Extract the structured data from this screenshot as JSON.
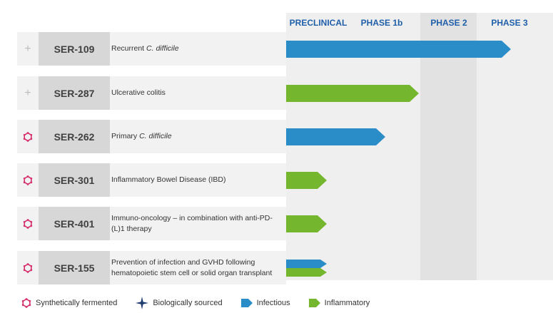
{
  "phases": [
    "PRECLINICAL",
    "PHASE 1b",
    "PHASE 2",
    "PHASE 3"
  ],
  "colors": {
    "infectious": "#2a8dc8",
    "inflammatory": "#74b62e",
    "synthetic_icon": "#d6316e",
    "biological_icon": "#1d3b6e",
    "phase_header": "#1f5fa9"
  },
  "programs": [
    {
      "code": "SER-109",
      "indication_parts": [
        {
          "text": "Recurrent ",
          "italic": false
        },
        {
          "text": "C. difficile",
          "italic": true
        }
      ],
      "source": "biological",
      "bars": [
        {
          "type": "infectious",
          "progress": 1.0
        }
      ]
    },
    {
      "code": "SER-287",
      "indication_parts": [
        {
          "text": "Ulcerative colitis",
          "italic": false
        }
      ],
      "source": "biological",
      "bars": [
        {
          "type": "inflammatory",
          "progress": 0.59
        }
      ]
    },
    {
      "code": "SER-262",
      "indication_parts": [
        {
          "text": "Primary ",
          "italic": false
        },
        {
          "text": "C. difficile",
          "italic": true
        }
      ],
      "source": "synthetic",
      "bars": [
        {
          "type": "infectious",
          "progress": 0.44
        }
      ]
    },
    {
      "code": "SER-301",
      "indication_parts": [
        {
          "text": "Inflammatory Bowel Disease (IBD)",
          "italic": false
        }
      ],
      "source": "synthetic",
      "bars": [
        {
          "type": "inflammatory",
          "progress": 0.18
        }
      ]
    },
    {
      "code": "SER-401",
      "indication_parts": [
        {
          "text": "Immuno-oncology – in combination with anti-PD-(L)1 therapy",
          "italic": false
        }
      ],
      "source": "synthetic",
      "bars": [
        {
          "type": "inflammatory",
          "progress": 0.18
        }
      ]
    },
    {
      "code": "SER-155",
      "indication_parts": [
        {
          "text": "Prevention of infection and GVHD following hematopoietic stem cell or solid organ transplant",
          "italic": false
        }
      ],
      "source": "synthetic",
      "bars": [
        {
          "type": "infectious",
          "progress": 0.18
        },
        {
          "type": "inflammatory",
          "progress": 0.18
        }
      ]
    }
  ],
  "legend": {
    "synthetic": "Synthetically fermented",
    "biological": "Biologically sourced",
    "infectious": "Infectious",
    "inflammatory": "Inflammatory"
  }
}
